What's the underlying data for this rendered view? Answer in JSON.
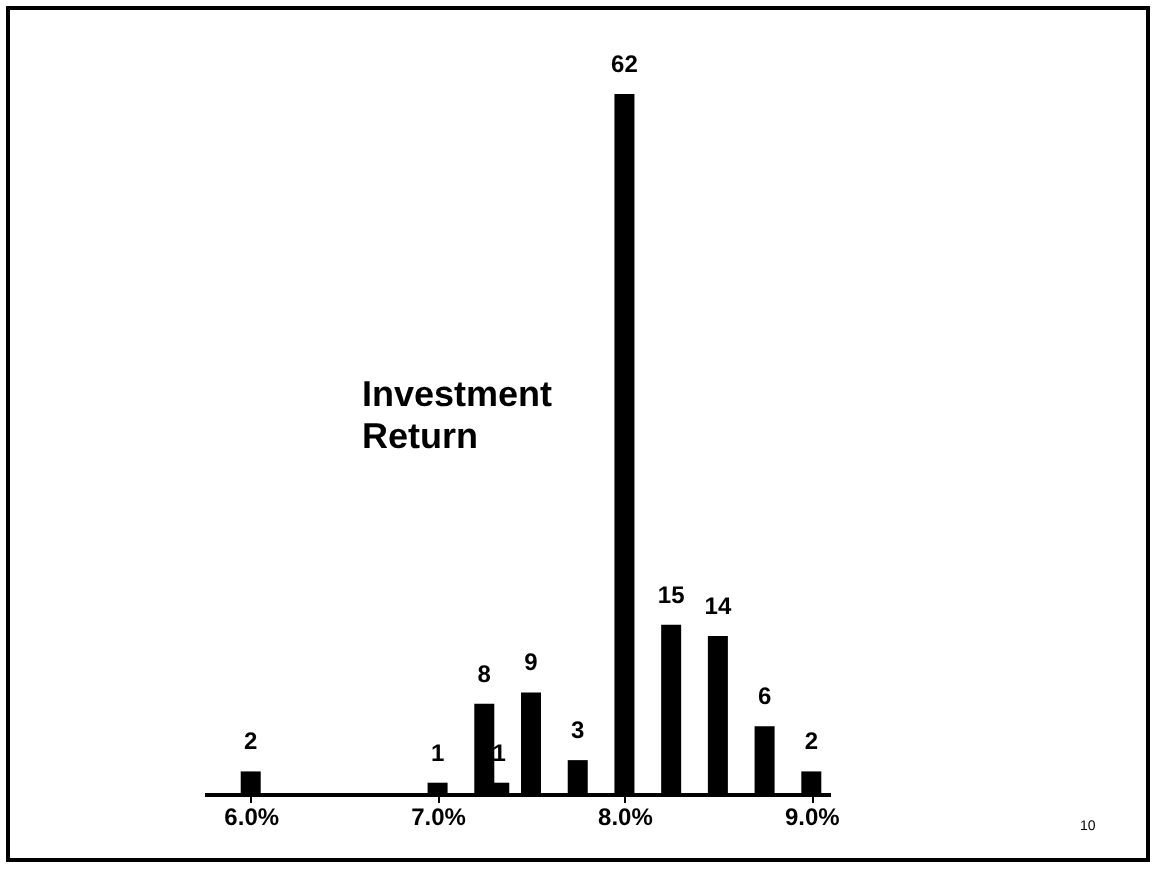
{
  "chart_data": {
    "type": "bar",
    "x": [
      6.0,
      7.0,
      7.25,
      7.33,
      7.5,
      7.75,
      8.0,
      8.25,
      8.5,
      8.75,
      9.0
    ],
    "values": [
      2,
      1,
      8,
      1,
      9,
      3,
      62,
      15,
      14,
      6,
      2
    ],
    "color": "#000000",
    "data_labels": true,
    "xlim": [
      5.75,
      9.1
    ],
    "xticks": [
      {
        "value": 6,
        "label": "6.0%"
      },
      {
        "value": 7,
        "label": "7.0%"
      },
      {
        "value": 8,
        "label": "8.0%"
      },
      {
        "value": 9,
        "label": "9.0%"
      }
    ],
    "tick_labels": "x",
    "grid": false,
    "annotations": [
      "Investment Return",
      "10"
    ]
  }
}
